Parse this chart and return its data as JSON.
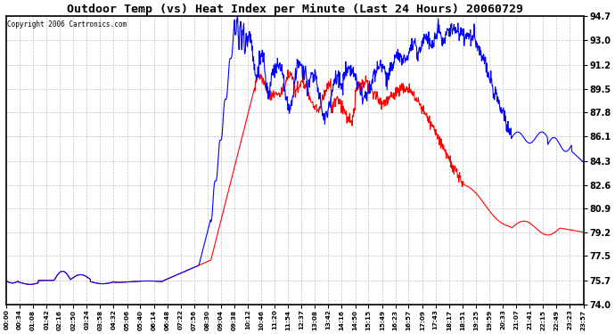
{
  "title": "Outdoor Temp (vs) Heat Index per Minute (Last 24 Hours) 20060729",
  "copyright": "Copyright 2006 Cartronics.com",
  "background_color": "#ffffff",
  "grid_color": "#bbbbbb",
  "line_color_temp": "#ff0000",
  "line_color_heat": "#0000ff",
  "ylim": [
    74.0,
    94.7
  ],
  "yticks": [
    74.0,
    75.7,
    77.5,
    79.2,
    80.9,
    82.6,
    84.3,
    86.1,
    87.8,
    89.5,
    91.2,
    93.0,
    94.7
  ],
  "xtick_labels": [
    "00:00",
    "00:34",
    "01:08",
    "01:42",
    "02:16",
    "02:50",
    "03:24",
    "03:58",
    "04:32",
    "05:06",
    "05:40",
    "06:14",
    "06:48",
    "07:22",
    "07:56",
    "08:30",
    "09:04",
    "09:38",
    "10:12",
    "10:46",
    "11:20",
    "11:54",
    "12:37",
    "13:08",
    "13:42",
    "14:16",
    "14:50",
    "15:15",
    "15:49",
    "16:23",
    "16:57",
    "17:09",
    "17:43",
    "18:17",
    "18:51",
    "19:25",
    "19:59",
    "20:33",
    "21:07",
    "21:41",
    "22:15",
    "22:49",
    "23:23",
    "23:57"
  ]
}
